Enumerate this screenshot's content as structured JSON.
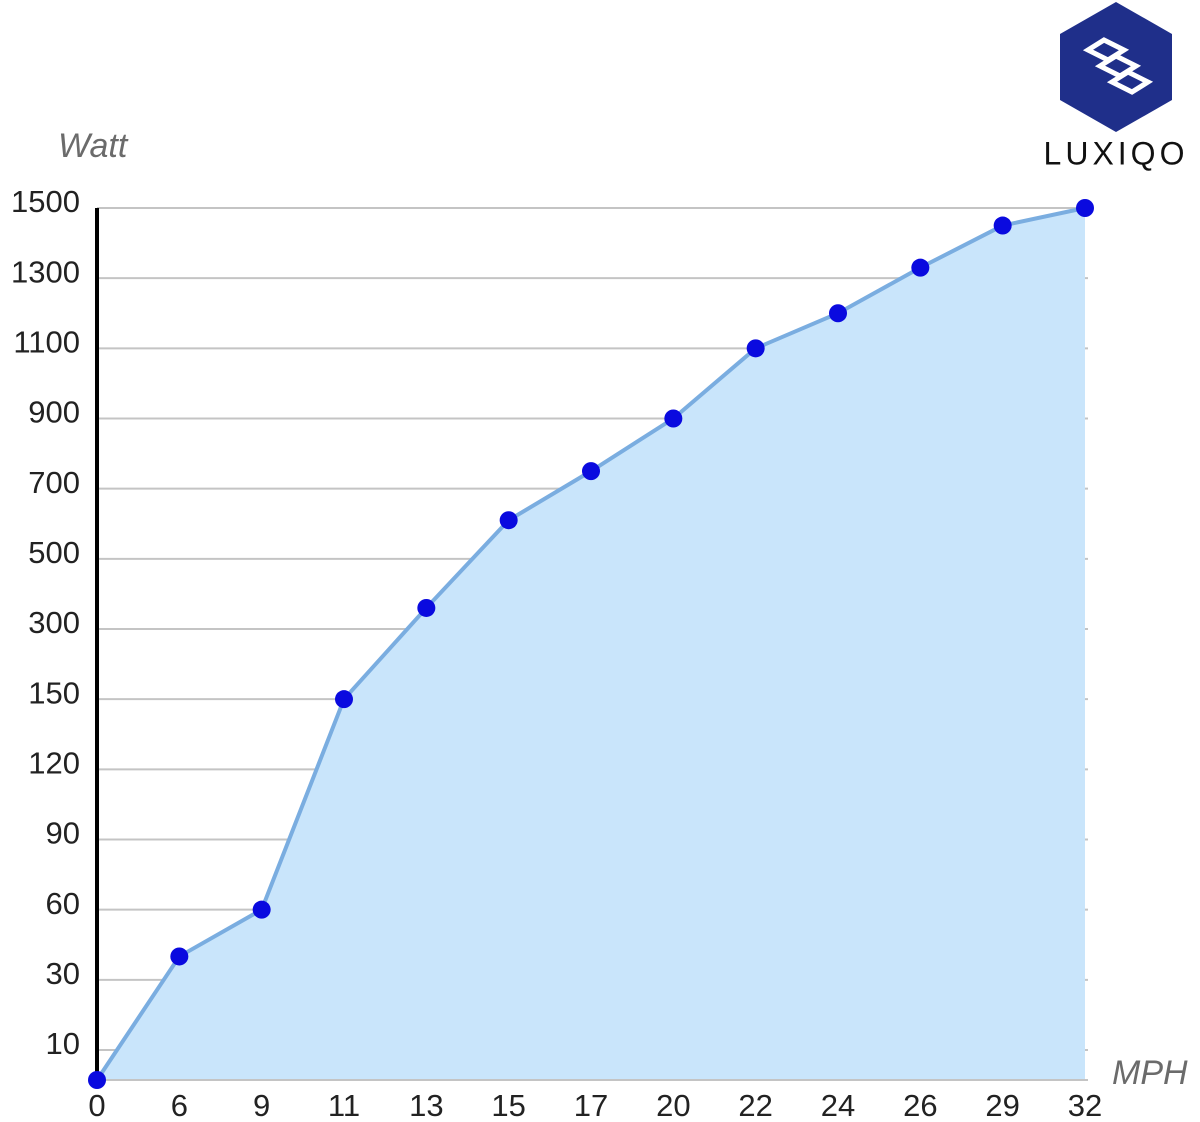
{
  "chart_data": {
    "type": "area",
    "y_label": "Watt",
    "x_label": "MPH",
    "categories": [
      "0",
      "6",
      "9",
      "11",
      "13",
      "15",
      "17",
      "20",
      "22",
      "24",
      "26",
      "29",
      "32"
    ],
    "values": [
      0,
      40,
      60,
      150,
      360,
      610,
      750,
      900,
      1100,
      1200,
      1330,
      1450,
      1500
    ],
    "ylim": [
      0,
      1500
    ],
    "yticks": [
      10,
      30,
      60,
      90,
      120,
      150,
      300,
      500,
      700,
      900,
      1100,
      1300,
      1500
    ],
    "grid": true,
    "line_color": "#7aade0",
    "fill_color": "#c9e5fb",
    "marker_color": "#0a0adf"
  },
  "logo": {
    "text": "LUXIQO"
  }
}
